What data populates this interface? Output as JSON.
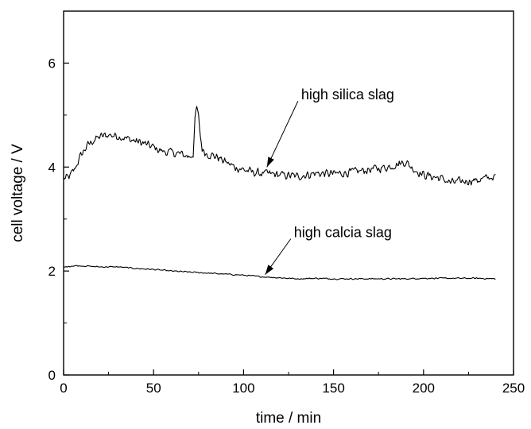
{
  "chart_data": {
    "type": "line",
    "title": "",
    "xlabel": "time / min",
    "ylabel": "cell voltage / V",
    "xlim": [
      0,
      250
    ],
    "ylim": [
      0,
      7
    ],
    "x_ticks": [
      0,
      50,
      100,
      150,
      200,
      250
    ],
    "y_ticks": [
      0,
      2,
      4,
      6
    ],
    "grid": false,
    "series": [
      {
        "x": [
          0,
          3,
          6,
          8,
          10,
          13,
          16,
          20,
          25,
          30,
          35,
          40,
          45,
          50,
          55,
          60,
          65,
          70,
          72,
          73,
          74,
          75,
          76,
          77,
          78,
          80,
          85,
          90,
          95,
          100,
          105,
          110,
          120,
          130,
          140,
          150,
          160,
          170,
          180,
          185,
          190,
          195,
          200,
          210,
          215,
          220,
          230,
          240
        ],
        "y": [
          3.78,
          3.8,
          3.95,
          4.1,
          4.25,
          4.4,
          4.5,
          4.58,
          4.62,
          4.6,
          4.55,
          4.5,
          4.45,
          4.38,
          4.3,
          4.28,
          4.25,
          4.2,
          4.25,
          4.9,
          5.15,
          4.95,
          4.6,
          4.35,
          4.3,
          4.25,
          4.2,
          4.1,
          4.0,
          3.95,
          3.9,
          3.88,
          3.85,
          3.82,
          3.88,
          3.87,
          3.9,
          3.95,
          4.0,
          4.05,
          4.1,
          3.95,
          3.85,
          3.78,
          3.7,
          3.72,
          3.75,
          3.82
        ],
        "noise": 0.1
      },
      {
        "x": [
          0,
          5,
          10,
          20,
          30,
          40,
          50,
          60,
          70,
          80,
          90,
          100,
          110,
          120,
          130,
          140,
          150,
          160,
          170,
          180,
          190,
          200,
          210,
          220,
          230,
          240
        ],
        "y": [
          2.07,
          2.1,
          2.1,
          2.08,
          2.08,
          2.05,
          2.03,
          2.0,
          1.98,
          1.96,
          1.94,
          1.92,
          1.89,
          1.87,
          1.85,
          1.86,
          1.85,
          1.85,
          1.85,
          1.85,
          1.85,
          1.86,
          1.86,
          1.86,
          1.86,
          1.85
        ],
        "noise": 0.015
      }
    ],
    "annotations": [
      {
        "text": "high silica slag",
        "text_xy": [
          132,
          5.3
        ],
        "arrow_to": [
          113,
          4.0
        ]
      },
      {
        "text": "high calcia slag",
        "text_xy": [
          128,
          2.65
        ],
        "arrow_to": [
          112,
          1.93
        ]
      }
    ]
  }
}
